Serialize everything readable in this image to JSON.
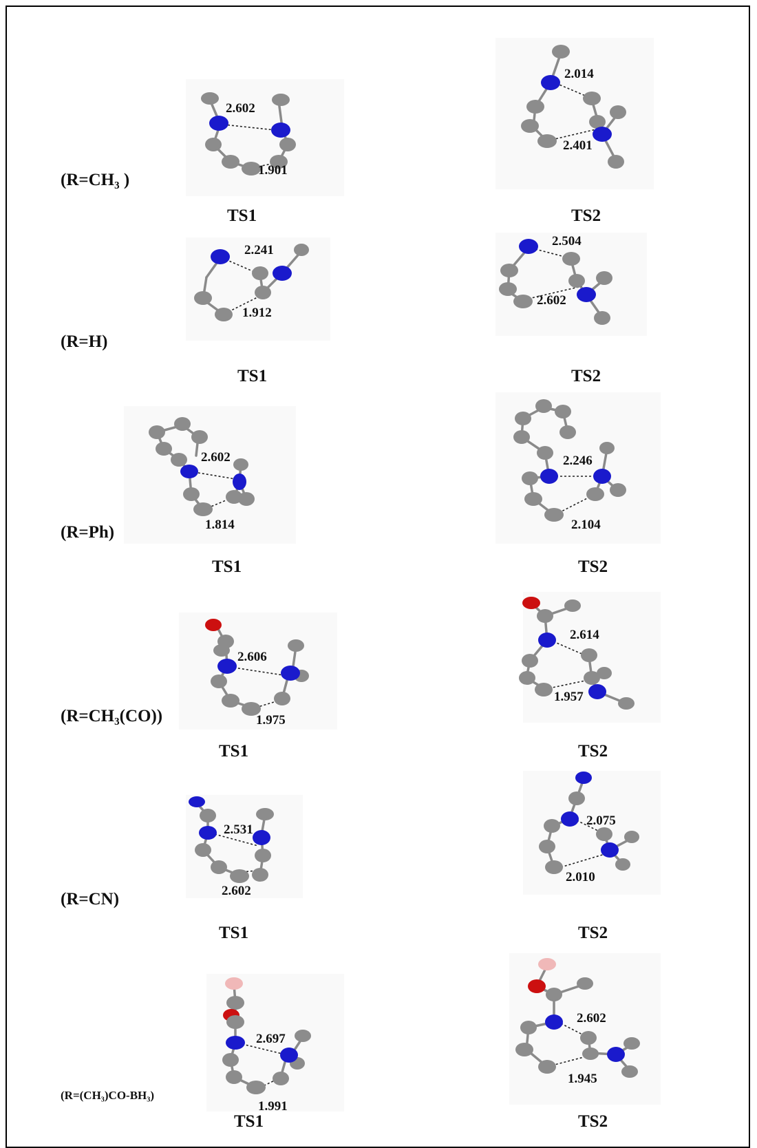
{
  "rows": [
    {
      "label": "(R=CH₃ )",
      "ts1": {
        "label": "TS1",
        "d1": "2.602",
        "d2": "1.901"
      },
      "ts2": {
        "label": "TS2",
        "d1": "2.014",
        "d2": "2.401"
      }
    },
    {
      "label": "(R=H)",
      "ts1": {
        "label": "TS1",
        "d1": "2.241",
        "d2": "1.912"
      },
      "ts2": {
        "label": "TS2",
        "d1": "2.504",
        "d2": "2.602"
      }
    },
    {
      "label": "(R=Ph)",
      "ts1": {
        "label": "TS1",
        "d1": "2.602",
        "d2": "1.814"
      },
      "ts2": {
        "label": "TS2",
        "d1": "2.246",
        "d2": "2.104"
      }
    },
    {
      "label": "(R=CH₃(CO))",
      "ts1": {
        "label": "TS1",
        "d1": "2.606",
        "d2": "1.975"
      },
      "ts2": {
        "label": "TS2",
        "d1": "2.614",
        "d2": "1.957"
      }
    },
    {
      "label": "(R=CN)",
      "ts1": {
        "label": "TS1",
        "d1": "2.531",
        "d2": "2.602"
      },
      "ts2": {
        "label": "TS2",
        "d1": "2.075",
        "d2": "2.010"
      }
    },
    {
      "label": "(R=(CH₃)CO-BH₃)",
      "ts1": {
        "label": "TS1",
        "d1": "2.697",
        "d2": "1.991"
      },
      "ts2": {
        "label": "TS2",
        "d1": "2.602",
        "d2": "1.945"
      }
    }
  ],
  "colors": {
    "carbon": "#8c8c8c",
    "nitrogen": "#1a1acc",
    "oxygen": "#cc1010",
    "boron": "#f0b8b8"
  }
}
